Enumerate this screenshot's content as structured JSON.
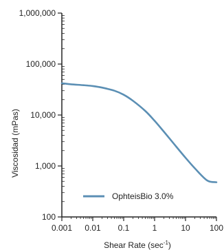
{
  "colors": {
    "series": "#5b8fb4",
    "axis": "#222222",
    "background": "#ffffff"
  },
  "chart_data": {
    "type": "line",
    "title": "",
    "xlabel": "Shear Rate (sec",
    "xlabel_sup": "-1",
    "xlabel_close": ")",
    "ylabel": "Viscosidad (mPas)",
    "x_scale": "log",
    "y_scale": "log",
    "xlim": [
      0.001,
      100
    ],
    "ylim": [
      100,
      1000000
    ],
    "x_ticks": [
      {
        "value": 0.001,
        "label": "0.001"
      },
      {
        "value": 0.01,
        "label": "0.01"
      },
      {
        "value": 0.1,
        "label": "0.1"
      },
      {
        "value": 1,
        "label": "1"
      },
      {
        "value": 10,
        "label": "10"
      },
      {
        "value": 100,
        "label": "100"
      }
    ],
    "y_ticks": [
      {
        "value": 100,
        "label": "100"
      },
      {
        "value": 1000,
        "label": "1,000"
      },
      {
        "value": 10000,
        "label": "10,000"
      },
      {
        "value": 100000,
        "label": "100,000"
      },
      {
        "value": 1000000,
        "label": "1,000,000"
      }
    ],
    "grid": false,
    "legend_position": "bottom-left",
    "series": [
      {
        "name": "OphteisBio 3.0%",
        "x": [
          0.001,
          0.002,
          0.005,
          0.01,
          0.02,
          0.05,
          0.1,
          0.2,
          0.5,
          1,
          2,
          5,
          10,
          20,
          50,
          100
        ],
        "y": [
          42000,
          40000,
          38500,
          37000,
          34500,
          30000,
          25000,
          19000,
          12000,
          7700,
          4700,
          2400,
          1450,
          900,
          520,
          480
        ]
      }
    ]
  }
}
